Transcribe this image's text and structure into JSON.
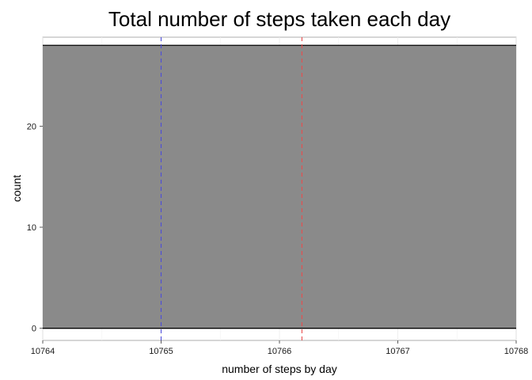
{
  "chart_data": {
    "type": "bar",
    "title": "Total number of steps taken each day",
    "xlabel": "number of steps by day",
    "ylabel": "count",
    "xlim": [
      10764,
      10768
    ],
    "ylim": [
      -1.2,
      28.8
    ],
    "x_ticks": [
      {
        "value": 10764,
        "label": "10764"
      },
      {
        "value": 10765,
        "label": "10765"
      },
      {
        "value": 10766,
        "label": "10766"
      },
      {
        "value": 10767,
        "label": "10767"
      },
      {
        "value": 10768,
        "label": "10768"
      }
    ],
    "y_ticks": [
      {
        "value": 0,
        "label": "0"
      },
      {
        "value": 10,
        "label": "10"
      },
      {
        "value": 20,
        "label": "20"
      }
    ],
    "bars": [
      {
        "x_start": 10764,
        "x_end": 10768,
        "count": 28
      }
    ],
    "reference_lines": [
      {
        "x": 10765,
        "color": "#4d4dd9",
        "style": "dashed"
      },
      {
        "x": 10766.19,
        "color": "#e84d4d",
        "style": "dashed"
      }
    ],
    "grid": true,
    "bar_fill": "#8a8a8a",
    "bar_stroke": "#000000"
  }
}
